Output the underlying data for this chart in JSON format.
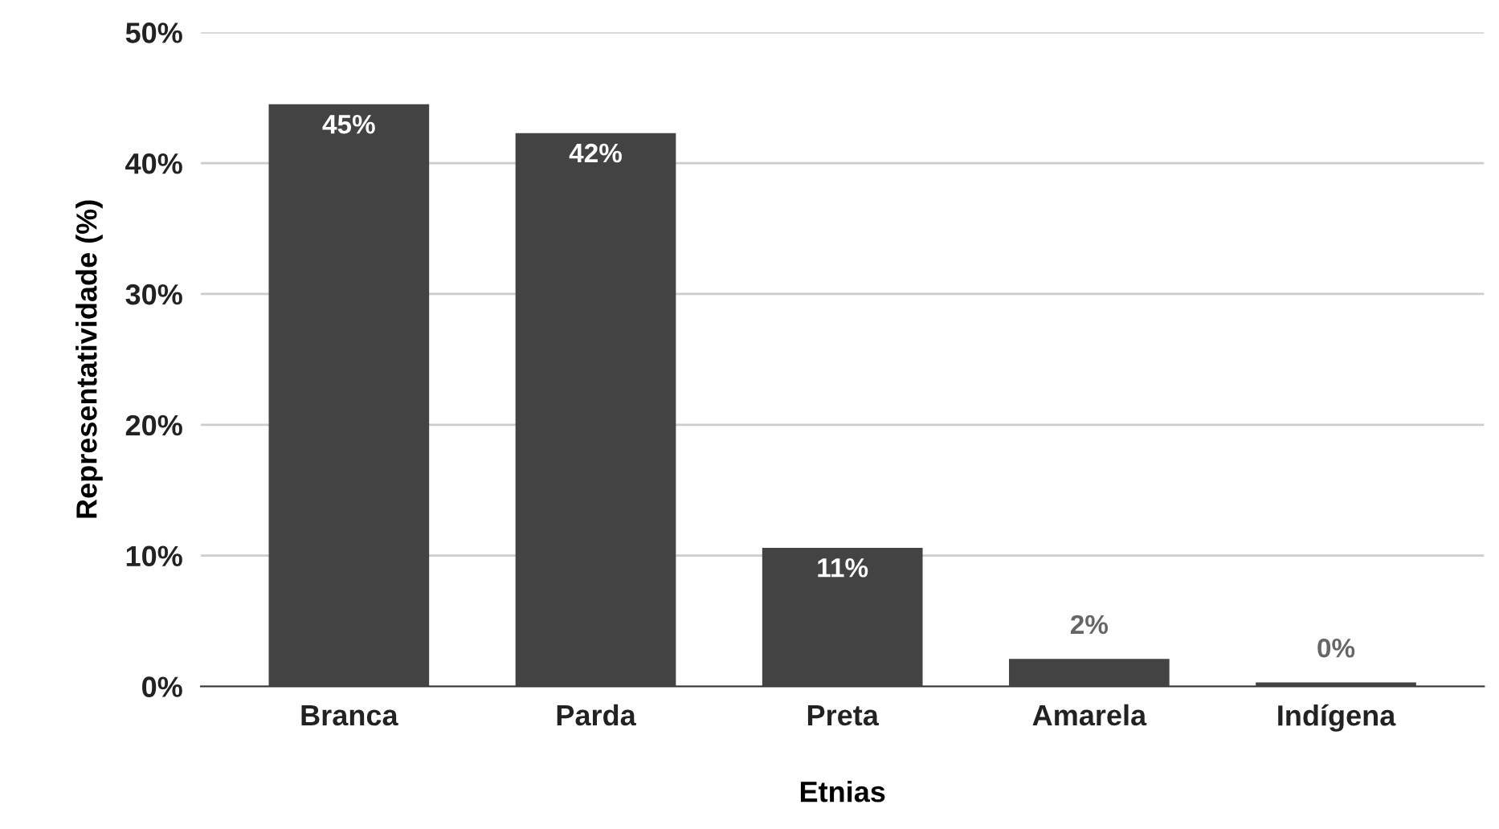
{
  "chart_data": {
    "type": "bar",
    "xlabel": "Etnias",
    "ylabel": "Representatividade (%)",
    "categories": [
      "Branca",
      "Parda",
      "Preta",
      "Amarela",
      "Indígena"
    ],
    "values": [
      44.5,
      42.3,
      10.6,
      2.1,
      0.3
    ],
    "value_labels": [
      "45%",
      "42%",
      "11%",
      "2%",
      "0%"
    ],
    "color": "#434343",
    "ylim": [
      0,
      50
    ],
    "yticks": [
      {
        "value": 0,
        "label": "0%"
      },
      {
        "value": 10,
        "label": "10%"
      },
      {
        "value": 20,
        "label": "20%"
      },
      {
        "value": 30,
        "label": "30%"
      },
      {
        "value": 40,
        "label": "40%"
      },
      {
        "value": 50,
        "label": "50%"
      }
    ],
    "grid": "y"
  }
}
